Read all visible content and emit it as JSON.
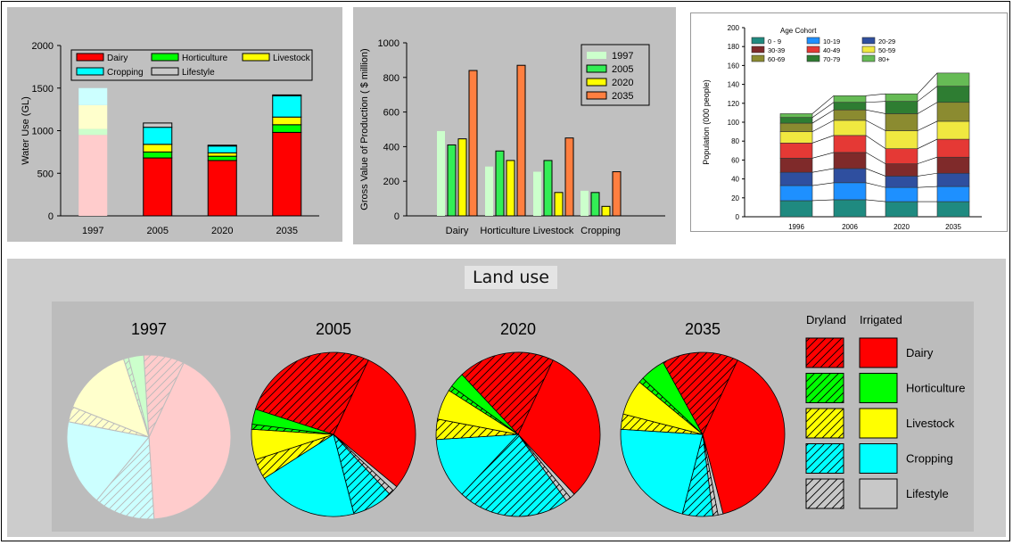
{
  "colors": {
    "dairy": "#ff0000",
    "horticulture": "#00ff00",
    "livestock": "#ffff00",
    "cropping": "#00ffff",
    "lifestyle": "#c8c8c8",
    "dairy_faint": "#ffcccc",
    "horticulture_faint": "#ccffcc",
    "livestock_faint": "#ffffcc",
    "cropping_faint": "#ccffff",
    "lifestyle_faint": "#e6e6e6",
    "gvp_1997": "#ccffcc",
    "gvp_2005": "#33ee55",
    "gvp_2020": "#ffff00",
    "gvp_2035": "#ff7f40",
    "c0_9": "#1f8a80",
    "c10_19": "#1e90ff",
    "c20_29": "#2f4f9f",
    "c30_39": "#7f2a2a",
    "c40_49": "#e53935",
    "c50_59": "#f0e840",
    "c60_69": "#8b8b30",
    "c70_79": "#2e7d32",
    "c80": "#66bb55"
  },
  "chart_data": [
    {
      "type": "bar",
      "stacked": true,
      "categories": [
        "1997",
        "2005",
        "2020",
        "2035"
      ],
      "ylabel": "Water Use (GL)",
      "ylim": [
        0,
        2000
      ],
      "yticks": [
        0,
        500,
        1000,
        1500,
        2000
      ],
      "legend_position": "top",
      "series": [
        {
          "name": "Dairy",
          "values": [
            950,
            680,
            650,
            980
          ]
        },
        {
          "name": "Horticulture",
          "values": [
            70,
            70,
            50,
            90
          ]
        },
        {
          "name": "Livestock",
          "values": [
            280,
            90,
            40,
            90
          ]
        },
        {
          "name": "Cropping",
          "values": [
            200,
            200,
            80,
            250
          ]
        },
        {
          "name": "Lifestyle",
          "values": [
            0,
            50,
            10,
            10
          ]
        }
      ]
    },
    {
      "type": "bar",
      "categories": [
        "Dairy",
        "Horticulture",
        "Livestock",
        "Cropping"
      ],
      "ylabel": "Gross Value of Production ( $ million)",
      "ylim": [
        0,
        1000
      ],
      "yticks": [
        0,
        200,
        400,
        600,
        800,
        1000
      ],
      "legend_position": "top-right",
      "series": [
        {
          "name": "1997",
          "values": [
            490,
            285,
            255,
            145
          ]
        },
        {
          "name": "2005",
          "values": [
            410,
            375,
            320,
            135
          ]
        },
        {
          "name": "2020",
          "values": [
            445,
            320,
            135,
            55
          ]
        },
        {
          "name": "2035",
          "values": [
            840,
            870,
            450,
            255
          ]
        }
      ]
    },
    {
      "type": "bar",
      "stacked": true,
      "categories": [
        "1996",
        "2006",
        "2020",
        "2035"
      ],
      "ylabel": "Population (000 people)",
      "ylim": [
        0,
        200
      ],
      "yticks": [
        0,
        20,
        40,
        60,
        80,
        100,
        120,
        140,
        160,
        180,
        200
      ],
      "legend_title": "Age Cohort",
      "legend_position": "top-left",
      "series": [
        {
          "name": "0 - 9",
          "values": [
            17,
            18,
            16,
            16
          ]
        },
        {
          "name": "10-19",
          "values": [
            16,
            18,
            15,
            16
          ]
        },
        {
          "name": "20-29",
          "values": [
            14,
            15,
            12,
            14
          ]
        },
        {
          "name": "30-39",
          "values": [
            15,
            17,
            13,
            17
          ]
        },
        {
          "name": "40-49",
          "values": [
            16,
            18,
            16,
            19
          ]
        },
        {
          "name": "50-59",
          "values": [
            12,
            16,
            19,
            19
          ]
        },
        {
          "name": "60-69",
          "values": [
            9,
            11,
            18,
            20
          ]
        },
        {
          "name": "70-79",
          "values": [
            6,
            8,
            13,
            17
          ]
        },
        {
          "name": "80+",
          "values": [
            4,
            7,
            8,
            14
          ]
        }
      ]
    },
    {
      "type": "pie",
      "title": "Land use",
      "legend_headers": [
        "Dryland",
        "Irrigated"
      ],
      "legend_labels": [
        "Dairy",
        "Horticulture",
        "Livestock",
        "Cropping",
        "Lifestyle"
      ],
      "pies": [
        {
          "label": "1997",
          "faded": true,
          "slices": [
            {
              "category": "dairy",
              "irrigated": true,
              "value": 42
            },
            {
              "category": "cropping",
              "irrigated": false,
              "value": 12
            },
            {
              "category": "cropping",
              "irrigated": true,
              "value": 17
            },
            {
              "category": "livestock",
              "irrigated": false,
              "value": 3
            },
            {
              "category": "livestock",
              "irrigated": true,
              "value": 14
            },
            {
              "category": "horticulture",
              "irrigated": false,
              "value": 1
            },
            {
              "category": "horticulture",
              "irrigated": true,
              "value": 3
            },
            {
              "category": "dairy",
              "irrigated": false,
              "value": 8
            }
          ]
        },
        {
          "label": "2005",
          "slices": [
            {
              "category": "dairy",
              "irrigated": true,
              "value": 29
            },
            {
              "category": "lifestyle",
              "irrigated": true,
              "value": 1
            },
            {
              "category": "lifestyle",
              "irrigated": false,
              "value": 1
            },
            {
              "category": "cropping",
              "irrigated": false,
              "value": 8
            },
            {
              "category": "cropping",
              "irrigated": true,
              "value": 20
            },
            {
              "category": "livestock",
              "irrigated": false,
              "value": 4
            },
            {
              "category": "livestock",
              "irrigated": true,
              "value": 6
            },
            {
              "category": "horticulture",
              "irrigated": false,
              "value": 1
            },
            {
              "category": "horticulture",
              "irrigated": true,
              "value": 3
            },
            {
              "category": "dairy",
              "irrigated": false,
              "value": 27
            }
          ]
        },
        {
          "label": "2020",
          "slices": [
            {
              "category": "dairy",
              "irrigated": true,
              "value": 31
            },
            {
              "category": "lifestyle",
              "irrigated": true,
              "value": 1
            },
            {
              "category": "lifestyle",
              "irrigated": false,
              "value": 1
            },
            {
              "category": "cropping",
              "irrigated": false,
              "value": 22
            },
            {
              "category": "cropping",
              "irrigated": true,
              "value": 12
            },
            {
              "category": "livestock",
              "irrigated": false,
              "value": 4
            },
            {
              "category": "livestock",
              "irrigated": true,
              "value": 6
            },
            {
              "category": "horticulture",
              "irrigated": false,
              "value": 1
            },
            {
              "category": "horticulture",
              "irrigated": true,
              "value": 3
            },
            {
              "category": "dairy",
              "irrigated": false,
              "value": 19
            }
          ]
        },
        {
          "label": "2035",
          "slices": [
            {
              "category": "dairy",
              "irrigated": true,
              "value": 39
            },
            {
              "category": "lifestyle",
              "irrigated": true,
              "value": 1
            },
            {
              "category": "lifestyle",
              "irrigated": false,
              "value": 1
            },
            {
              "category": "cropping",
              "irrigated": false,
              "value": 6
            },
            {
              "category": "cropping",
              "irrigated": true,
              "value": 22
            },
            {
              "category": "livestock",
              "irrigated": false,
              "value": 3
            },
            {
              "category": "livestock",
              "irrigated": true,
              "value": 7
            },
            {
              "category": "horticulture",
              "irrigated": false,
              "value": 1
            },
            {
              "category": "horticulture",
              "irrigated": true,
              "value": 5
            },
            {
              "category": "dairy",
              "irrigated": false,
              "value": 15
            }
          ]
        }
      ]
    }
  ]
}
